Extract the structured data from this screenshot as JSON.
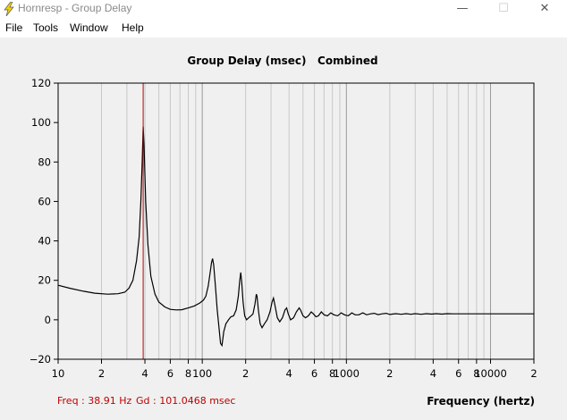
{
  "window": {
    "title": "Hornresp - Group Delay",
    "minimize_glyph": "—",
    "maximize_glyph": "☐",
    "close_glyph": "✕",
    "icon": "lightning-icon"
  },
  "menu": {
    "items": [
      {
        "id": "file",
        "label": "File"
      },
      {
        "id": "tools",
        "label": "Tools"
      },
      {
        "id": "window",
        "label": "Window"
      },
      {
        "id": "help",
        "label": "Help"
      }
    ]
  },
  "status": {
    "freq_label": "Freq : 38.91 Hz",
    "gd_label": "Gd : 101.0468 msec"
  },
  "colors": {
    "curve": "#000000",
    "cursor": "#c00000",
    "grid": "#c8c8c8",
    "status_text": "#c00000"
  },
  "chart_data": {
    "type": "line",
    "title": "Group Delay (msec)   Combined",
    "xlabel": "Frequency (hertz)",
    "ylabel": "",
    "x_scale": "log",
    "xlim": [
      10,
      20000
    ],
    "ylim": [
      -20,
      120
    ],
    "y_ticks": [
      120,
      100,
      80,
      60,
      40,
      20,
      0,
      -20
    ],
    "x_ticks": [
      {
        "value": 10,
        "label": "10"
      },
      {
        "value": 20,
        "label": "2"
      },
      {
        "value": 40,
        "label": "4"
      },
      {
        "value": 60,
        "label": "6"
      },
      {
        "value": 80,
        "label": "8"
      },
      {
        "value": 100,
        "label": "100"
      },
      {
        "value": 200,
        "label": "2"
      },
      {
        "value": 400,
        "label": "4"
      },
      {
        "value": 600,
        "label": "6"
      },
      {
        "value": 800,
        "label": "8"
      },
      {
        "value": 1000,
        "label": "1000"
      },
      {
        "value": 2000,
        "label": "2"
      },
      {
        "value": 4000,
        "label": "4"
      },
      {
        "value": 6000,
        "label": "6"
      },
      {
        "value": 8000,
        "label": "8"
      },
      {
        "value": 10000,
        "label": "10000"
      },
      {
        "value": 20000,
        "label": "2"
      }
    ],
    "grid": true,
    "cursor_x": 38.91,
    "series": [
      {
        "points": [
          [
            10,
            17.5
          ],
          [
            12,
            16
          ],
          [
            15,
            14.5
          ],
          [
            18,
            13.5
          ],
          [
            22,
            13
          ],
          [
            26,
            13.2
          ],
          [
            29,
            14
          ],
          [
            31,
            16
          ],
          [
            33,
            20
          ],
          [
            35,
            30
          ],
          [
            36.5,
            42
          ],
          [
            37.5,
            60
          ],
          [
            38.3,
            80
          ],
          [
            38.91,
            98
          ],
          [
            39.5,
            88
          ],
          [
            40.5,
            60
          ],
          [
            42,
            38
          ],
          [
            44,
            22
          ],
          [
            47,
            13
          ],
          [
            50,
            9
          ],
          [
            55,
            6.5
          ],
          [
            60,
            5.3
          ],
          [
            66,
            5
          ],
          [
            72,
            5.1
          ],
          [
            80,
            6
          ],
          [
            88,
            7
          ],
          [
            96,
            8.5
          ],
          [
            102,
            10
          ],
          [
            106,
            12
          ],
          [
            110,
            17
          ],
          [
            113,
            23
          ],
          [
            116,
            29
          ],
          [
            118,
            31
          ],
          [
            120,
            28
          ],
          [
            123,
            18
          ],
          [
            127,
            5
          ],
          [
            131,
            -5
          ],
          [
            134,
            -12
          ],
          [
            137,
            -13
          ],
          [
            141,
            -6
          ],
          [
            146,
            -2
          ],
          [
            152,
            0
          ],
          [
            158,
            1.5
          ],
          [
            165,
            2
          ],
          [
            172,
            5
          ],
          [
            178,
            12
          ],
          [
            182,
            20
          ],
          [
            185,
            24
          ],
          [
            188,
            19
          ],
          [
            192,
            9
          ],
          [
            197,
            2
          ],
          [
            203,
            0
          ],
          [
            210,
            1
          ],
          [
            218,
            2
          ],
          [
            225,
            3
          ],
          [
            232,
            8
          ],
          [
            237,
            13
          ],
          [
            240,
            12
          ],
          [
            245,
            5
          ],
          [
            252,
            -2
          ],
          [
            260,
            -4
          ],
          [
            270,
            -2
          ],
          [
            282,
            0
          ],
          [
            295,
            4
          ],
          [
            305,
            9
          ],
          [
            312,
            11
          ],
          [
            320,
            7
          ],
          [
            332,
            1
          ],
          [
            345,
            -1
          ],
          [
            360,
            1
          ],
          [
            375,
            5
          ],
          [
            385,
            6
          ],
          [
            395,
            3
          ],
          [
            410,
            0
          ],
          [
            430,
            1
          ],
          [
            450,
            4
          ],
          [
            470,
            6
          ],
          [
            480,
            5
          ],
          [
            500,
            2
          ],
          [
            520,
            1
          ],
          [
            545,
            2
          ],
          [
            570,
            4
          ],
          [
            590,
            3
          ],
          [
            615,
            1.5
          ],
          [
            640,
            2
          ],
          [
            670,
            4
          ],
          [
            700,
            2.5
          ],
          [
            740,
            2
          ],
          [
            780,
            3.5
          ],
          [
            820,
            2.5
          ],
          [
            870,
            2
          ],
          [
            920,
            3.5
          ],
          [
            970,
            2.5
          ],
          [
            1030,
            2
          ],
          [
            1090,
            3.5
          ],
          [
            1150,
            2.5
          ],
          [
            1220,
            2.5
          ],
          [
            1300,
            3.5
          ],
          [
            1380,
            2.5
          ],
          [
            1470,
            3
          ],
          [
            1560,
            3.3
          ],
          [
            1660,
            2.6
          ],
          [
            1770,
            3
          ],
          [
            1890,
            3.3
          ],
          [
            2000,
            2.7
          ],
          [
            2200,
            3.1
          ],
          [
            2400,
            2.8
          ],
          [
            2600,
            3.1
          ],
          [
            2800,
            2.8
          ],
          [
            3000,
            3.1
          ],
          [
            3300,
            2.8
          ],
          [
            3600,
            3.1
          ],
          [
            3900,
            2.9
          ],
          [
            4200,
            3.1
          ],
          [
            4600,
            2.9
          ],
          [
            5000,
            3.1
          ],
          [
            5500,
            3
          ],
          [
            6000,
            3
          ],
          [
            7000,
            3
          ],
          [
            8000,
            3
          ],
          [
            10000,
            3
          ],
          [
            14000,
            3
          ],
          [
            20000,
            3
          ]
        ]
      }
    ]
  }
}
